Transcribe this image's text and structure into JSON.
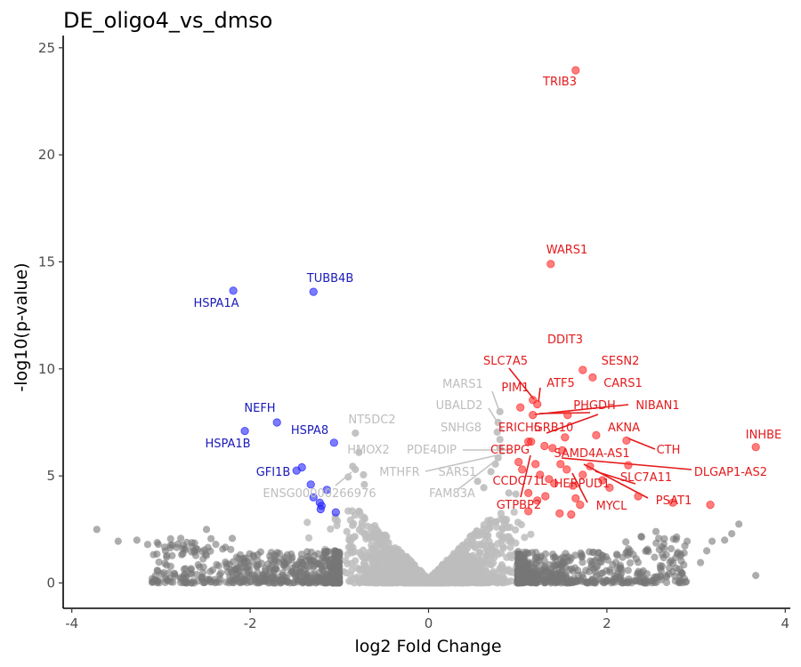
{
  "chart_data": {
    "type": "scatter",
    "title": "DE_oligo4_vs_dmso",
    "xlabel": "log2 Fold Change",
    "ylabel": "-log10(p-value)",
    "xlim": [
      -4.05,
      4.05
    ],
    "ylim": [
      -1.2,
      25.3
    ],
    "xticks": [
      "-4",
      "-2",
      "0",
      "2",
      "4"
    ],
    "yticks": [
      "0",
      "5",
      "10",
      "15",
      "20",
      "25"
    ],
    "grid": false,
    "legend": "none",
    "colors": {
      "up": "#ff2a2a",
      "down": "#2424ff",
      "fc_only": "#777777",
      "ns": "#bdbdbd",
      "label_up": "#e41a1c",
      "label_down": "#1a1aba",
      "label_ns": "#bdbdbd"
    },
    "series": [
      {
        "category": "up",
        "points": [
          {
            "x": 1.65,
            "y": 23.95
          },
          {
            "x": 1.37,
            "y": 14.9
          },
          {
            "x": 1.73,
            "y": 9.95
          },
          {
            "x": 1.84,
            "y": 9.6
          },
          {
            "x": 1.17,
            "y": 8.55
          },
          {
            "x": 1.22,
            "y": 8.35
          },
          {
            "x": 1.03,
            "y": 8.2
          },
          {
            "x": 1.17,
            "y": 7.85
          },
          {
            "x": 1.56,
            "y": 7.85
          },
          {
            "x": 1.88,
            "y": 6.9
          },
          {
            "x": 1.53,
            "y": 6.8
          },
          {
            "x": 2.22,
            "y": 6.65
          },
          {
            "x": 1.12,
            "y": 6.6
          },
          {
            "x": 1.15,
            "y": 6.6
          },
          {
            "x": 1.3,
            "y": 6.4
          },
          {
            "x": 1.39,
            "y": 6.3
          },
          {
            "x": 1.5,
            "y": 6.2
          },
          {
            "x": 1.01,
            "y": 5.65
          },
          {
            "x": 1.2,
            "y": 5.55
          },
          {
            "x": 1.48,
            "y": 5.55
          },
          {
            "x": 1.81,
            "y": 5.45
          },
          {
            "x": 2.24,
            "y": 5.5
          },
          {
            "x": 1.05,
            "y": 5.3
          },
          {
            "x": 1.55,
            "y": 5.3
          },
          {
            "x": 1.25,
            "y": 5.05
          },
          {
            "x": 1.73,
            "y": 5.05
          },
          {
            "x": 1.35,
            "y": 4.85
          },
          {
            "x": 1.95,
            "y": 4.8
          },
          {
            "x": 1.41,
            "y": 4.65
          },
          {
            "x": 1.62,
            "y": 4.55
          },
          {
            "x": 2.03,
            "y": 4.45
          },
          {
            "x": 1.12,
            "y": 4.2
          },
          {
            "x": 1.31,
            "y": 4.05
          },
          {
            "x": 2.35,
            "y": 4.05
          },
          {
            "x": 1.65,
            "y": 3.95
          },
          {
            "x": 1.22,
            "y": 3.85
          },
          {
            "x": 1.7,
            "y": 3.65
          },
          {
            "x": 2.74,
            "y": 3.75
          },
          {
            "x": 3.16,
            "y": 3.65
          },
          {
            "x": 1.12,
            "y": 3.35
          },
          {
            "x": 1.47,
            "y": 3.25
          },
          {
            "x": 1.6,
            "y": 3.2
          },
          {
            "x": 3.67,
            "y": 6.35
          }
        ]
      },
      {
        "category": "down",
        "points": [
          {
            "x": -2.19,
            "y": 13.65
          },
          {
            "x": -1.29,
            "y": 13.6
          },
          {
            "x": -1.7,
            "y": 7.5
          },
          {
            "x": -2.06,
            "y": 7.1
          },
          {
            "x": -1.06,
            "y": 6.55
          },
          {
            "x": -1.42,
            "y": 5.4
          },
          {
            "x": -1.48,
            "y": 5.25
          },
          {
            "x": -1.32,
            "y": 4.6
          },
          {
            "x": -1.14,
            "y": 4.35
          },
          {
            "x": -1.29,
            "y": 4.0
          },
          {
            "x": -1.22,
            "y": 3.75
          },
          {
            "x": -1.2,
            "y": 3.6
          },
          {
            "x": -1.21,
            "y": 3.45
          },
          {
            "x": -1.04,
            "y": 3.3
          }
        ]
      },
      {
        "category": "ns_highlighted",
        "points": [
          {
            "x": 0.8,
            "y": 8.0
          },
          {
            "x": 0.78,
            "y": 7.5
          },
          {
            "x": 0.77,
            "y": 7.05
          },
          {
            "x": 0.8,
            "y": 6.7
          },
          {
            "x": 0.8,
            "y": 6.3
          },
          {
            "x": 0.78,
            "y": 5.85
          },
          {
            "x": 0.75,
            "y": 5.55
          },
          {
            "x": 0.7,
            "y": 5.2
          },
          {
            "x": -0.82,
            "y": 7.0
          },
          {
            "x": -0.78,
            "y": 6.1
          },
          {
            "x": -0.85,
            "y": 5.45
          },
          {
            "x": -0.82,
            "y": 5.3
          },
          {
            "x": -0.73,
            "y": 5.05
          },
          {
            "x": -0.9,
            "y": 4.95
          },
          {
            "x": 0.55,
            "y": 4.75
          },
          {
            "x": 0.62,
            "y": 4.45
          },
          {
            "x": -0.72,
            "y": 4.6
          },
          {
            "x": 0.9,
            "y": 4.2
          },
          {
            "x": 0.98,
            "y": 4.15
          }
        ]
      }
    ],
    "labels": [
      {
        "text": "TRIB3",
        "category": "up"
      },
      {
        "text": "WARS1",
        "category": "up"
      },
      {
        "text": "DDIT3",
        "category": "up"
      },
      {
        "text": "SESN2",
        "category": "up"
      },
      {
        "text": "SLC7A5",
        "category": "up"
      },
      {
        "text": "ATF5",
        "category": "up"
      },
      {
        "text": "CARS1",
        "category": "up"
      },
      {
        "text": "PIM1",
        "category": "up"
      },
      {
        "text": "PHGDH",
        "category": "up"
      },
      {
        "text": "NIBAN1",
        "category": "up"
      },
      {
        "text": "INHBE",
        "category": "up"
      },
      {
        "text": "AKNA",
        "category": "up"
      },
      {
        "text": "ERICH5",
        "category": "up"
      },
      {
        "text": "GRB10",
        "category": "up"
      },
      {
        "text": "CTH",
        "category": "up"
      },
      {
        "text": "CEBPG",
        "category": "up"
      },
      {
        "text": "SAMD4A-AS1",
        "category": "up"
      },
      {
        "text": "DLGAP1-AS2",
        "category": "up"
      },
      {
        "text": "SLC7A11",
        "category": "up"
      },
      {
        "text": "CCDC71L",
        "category": "up"
      },
      {
        "text": "HERPUD1",
        "category": "up"
      },
      {
        "text": "PSAT1",
        "category": "up"
      },
      {
        "text": "GTPBP2",
        "category": "up"
      },
      {
        "text": "MYCL",
        "category": "up"
      },
      {
        "text": "HSPA1A",
        "category": "down"
      },
      {
        "text": "TUBB4B",
        "category": "down"
      },
      {
        "text": "NEFH",
        "category": "down"
      },
      {
        "text": "HSPA8",
        "category": "down"
      },
      {
        "text": "HSPA1B",
        "category": "down"
      },
      {
        "text": "GFI1B",
        "category": "down"
      },
      {
        "text": "MARS1",
        "category": "ns"
      },
      {
        "text": "UBALD2",
        "category": "ns"
      },
      {
        "text": "SNHG8",
        "category": "ns"
      },
      {
        "text": "NT5DC2",
        "category": "ns"
      },
      {
        "text": "HMOX2",
        "category": "ns"
      },
      {
        "text": "PDE4DIP",
        "category": "ns"
      },
      {
        "text": "MTHFR",
        "category": "ns"
      },
      {
        "text": "SARS1",
        "category": "ns"
      },
      {
        "text": "FAM83A",
        "category": "ns"
      },
      {
        "text": "ENSG00000266976",
        "category": "ns"
      }
    ]
  }
}
